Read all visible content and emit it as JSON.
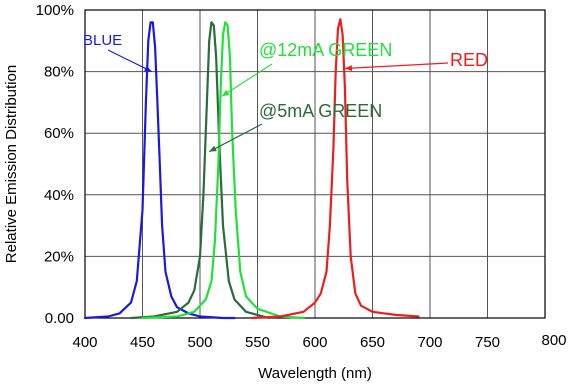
{
  "chart_data": {
    "type": "line",
    "title": "",
    "xlabel": "Wavelength (nm)",
    "ylabel": "Relative Emission Distribution",
    "xlim": [
      400,
      800
    ],
    "ylim": [
      0,
      100
    ],
    "x_ticks": [
      400,
      450,
      500,
      550,
      600,
      650,
      700,
      750,
      800
    ],
    "y_ticks": [
      {
        "value": 0,
        "label": "0.00"
      },
      {
        "value": 20,
        "label": "20%"
      },
      {
        "value": 40,
        "label": "40%"
      },
      {
        "value": 60,
        "label": "60%"
      },
      {
        "value": 80,
        "label": "80%"
      },
      {
        "value": 100,
        "label": "100%"
      }
    ],
    "grid": true,
    "series": [
      {
        "name": "BLUE",
        "color": "#1a1adc",
        "x": [
          400,
          420,
          430,
          440,
          445,
          450,
          453,
          455,
          457,
          459,
          461,
          463,
          465,
          467,
          470,
          475,
          480,
          490,
          500,
          520,
          530
        ],
        "y": [
          0,
          0.5,
          1.5,
          5,
          12,
          35,
          70,
          90,
          96,
          96,
          88,
          70,
          50,
          30,
          15,
          7,
          3.5,
          1.5,
          0.5,
          0,
          0
        ]
      },
      {
        "name": "@5mA GREEN",
        "color": "#2d6a3c",
        "x": [
          440,
          460,
          480,
          490,
          495,
          500,
          503,
          506,
          508,
          510,
          512,
          514,
          517,
          520,
          525,
          530,
          540,
          560
        ],
        "y": [
          0,
          0.5,
          2,
          5,
          9,
          20,
          40,
          70,
          90,
          96,
          95,
          85,
          55,
          30,
          12,
          6,
          2,
          0
        ]
      },
      {
        "name": "@12mA GREEN",
        "color": "#22e03a",
        "x": [
          450,
          480,
          495,
          505,
          510,
          513,
          516,
          518,
          520,
          522,
          524,
          526,
          528,
          531,
          535,
          540,
          550,
          570,
          590
        ],
        "y": [
          0,
          0.5,
          2,
          6,
          12,
          25,
          50,
          75,
          92,
          96,
          95,
          85,
          60,
          35,
          15,
          7,
          3,
          0.5,
          0
        ]
      },
      {
        "name": "RED",
        "color": "#ee1d1d",
        "x": [
          545,
          570,
          590,
          600,
          605,
          610,
          613,
          616,
          618,
          620,
          622,
          624,
          626,
          628,
          631,
          635,
          640,
          650,
          670,
          690
        ],
        "y": [
          0,
          0.5,
          2,
          5,
          8,
          15,
          30,
          55,
          80,
          94,
          97,
          92,
          75,
          45,
          20,
          8,
          4,
          2,
          1,
          0.5
        ]
      }
    ],
    "annotations": [
      {
        "text": "BLUE",
        "series": 0,
        "at_x": 458,
        "at_y": 80
      },
      {
        "text": "@12mA GREEN",
        "series": 2,
        "at_x": 519,
        "at_y": 72
      },
      {
        "text": "@5mA GREEN",
        "series": 1,
        "at_x": 508,
        "at_y": 54
      },
      {
        "text": "RED",
        "series": 3,
        "at_x": 626,
        "at_y": 81
      }
    ]
  }
}
